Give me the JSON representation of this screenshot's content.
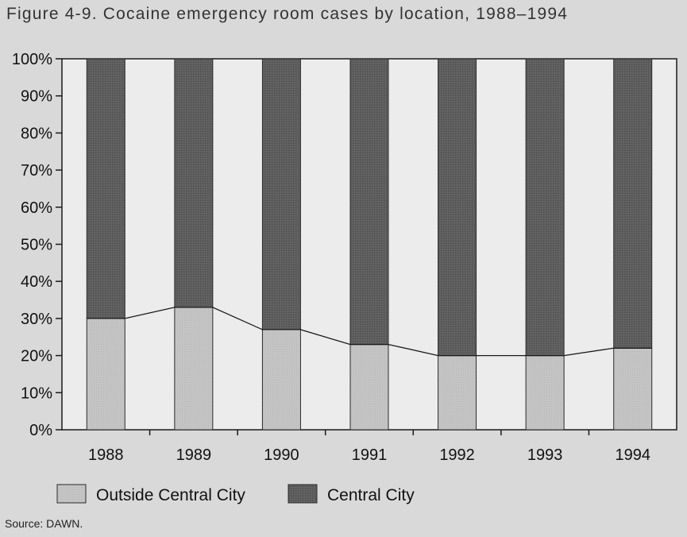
{
  "title": "Figure 4-9. Cocaine emergency room cases by location, 1988–1994",
  "source": "Source: DAWN.",
  "chart_data": {
    "type": "bar",
    "stacked": true,
    "percent": true,
    "categories": [
      "1988",
      "1989",
      "1990",
      "1991",
      "1992",
      "1993",
      "1994"
    ],
    "series": [
      {
        "name": "Outside Central City",
        "values": [
          30,
          33,
          27,
          23,
          20,
          20,
          22
        ],
        "color": "#c4c4c4"
      },
      {
        "name": "Central City",
        "values": [
          70,
          67,
          73,
          77,
          80,
          80,
          78
        ],
        "color": "#5e5e5e"
      }
    ],
    "ylim": [
      0,
      100
    ],
    "yticks": [
      "0%",
      "10%",
      "20%",
      "30%",
      "40%",
      "50%",
      "60%",
      "70%",
      "80%",
      "90%",
      "100%"
    ],
    "connector_line_on": "Outside Central City",
    "legend_position": "bottom",
    "grid": false
  }
}
